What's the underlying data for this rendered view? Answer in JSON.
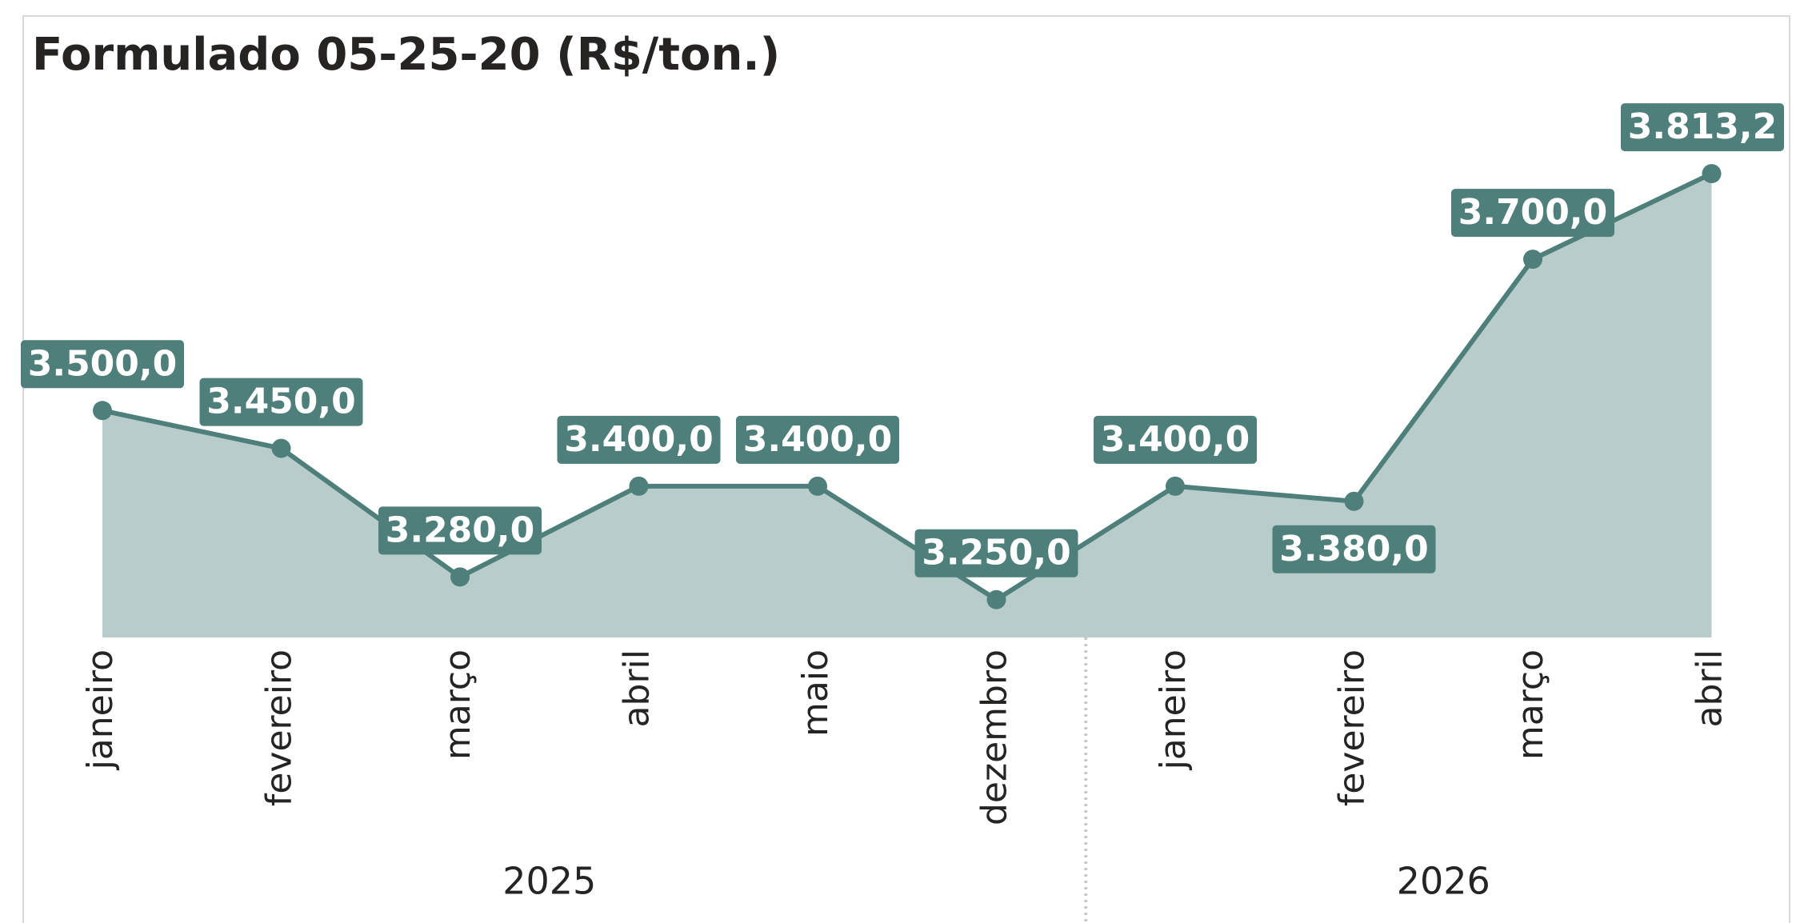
{
  "chart_data": {
    "type": "area",
    "title": "Formulado 05-25-20 (R$/ton.)",
    "groups": [
      {
        "label": "2025",
        "categories": [
          "janeiro",
          "fevereiro",
          "março",
          "abril",
          "maio",
          "dezembro"
        ]
      },
      {
        "label": "2026",
        "categories": [
          "janeiro",
          "fevereiro",
          "março",
          "abril"
        ]
      }
    ],
    "values": [
      3500,
      3450,
      3280,
      3400,
      3400,
      3250,
      3400,
      3380,
      3700,
      3813.2
    ],
    "value_labels": [
      "3.500,0",
      "3.450,0",
      "3.280,0",
      "3.400,0",
      "3.400,0",
      "3.250,0",
      "3.400,0",
      "3.380,0",
      "3.700,0",
      "3.813,2"
    ],
    "ylim": [
      3200,
      3900
    ],
    "color": "#4f7f7a",
    "fill_color": "#b8cdcb"
  }
}
